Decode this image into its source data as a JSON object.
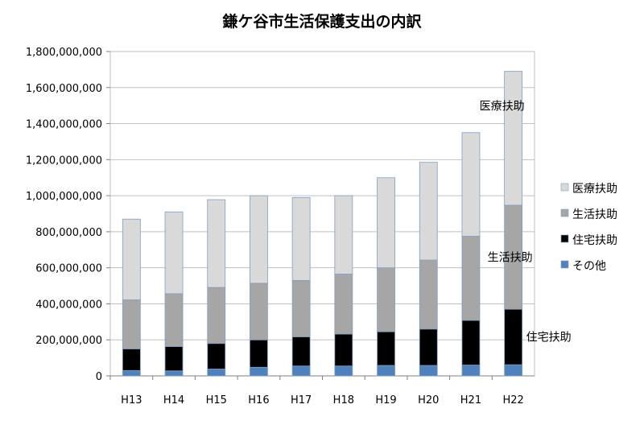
{
  "chart_data": {
    "type": "bar",
    "stacked": true,
    "title": "鎌ケ谷市生活保護支出の内訳",
    "categories": [
      "H13",
      "H14",
      "H15",
      "H16",
      "H17",
      "H18",
      "H19",
      "H20",
      "H21",
      "H22"
    ],
    "ylim": [
      0,
      1800000000
    ],
    "yticks": [
      "0",
      "200,000,000",
      "400,000,000",
      "600,000,000",
      "800,000,000",
      "1,000,000,000",
      "1,200,000,000",
      "1,400,000,000",
      "1,600,000,000",
      "1,800,000,000"
    ],
    "ytick_values": [
      0,
      200000000,
      400000000,
      600000000,
      800000000,
      1000000000,
      1200000000,
      1400000000,
      1600000000,
      1800000000
    ],
    "grid": true,
    "legend_position": "right",
    "series": [
      {
        "name": "その他",
        "color": "#4f81bd",
        "values": [
          30000000,
          28000000,
          38000000,
          48000000,
          55000000,
          55000000,
          58000000,
          58000000,
          60000000,
          62000000
        ]
      },
      {
        "name": "住宅扶助",
        "color": "#000000",
        "values": [
          120000000,
          135000000,
          142000000,
          152000000,
          162000000,
          177000000,
          187000000,
          202000000,
          248000000,
          308000000
        ]
      },
      {
        "name": "生活扶助",
        "color": "#a6a6a6",
        "values": [
          272000000,
          293000000,
          311000000,
          314000000,
          313000000,
          333000000,
          355000000,
          383000000,
          467000000,
          577000000
        ]
      },
      {
        "name": "医療扶助",
        "color": "#d9d9d9",
        "values": [
          448000000,
          454000000,
          487000000,
          486000000,
          460000000,
          435000000,
          500000000,
          542000000,
          575000000,
          743000000
        ]
      }
    ],
    "legend_order": [
      "医療扶助",
      "生活扶助",
      "住宅扶助",
      "その他"
    ],
    "annotations": [
      {
        "text": "医療扶助",
        "series": "医療扶助"
      },
      {
        "text": "生活扶助",
        "series": "生活扶助"
      },
      {
        "text": "住宅扶助",
        "series": "住宅扶助"
      }
    ]
  }
}
